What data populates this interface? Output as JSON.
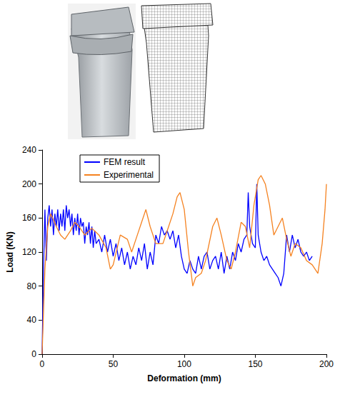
{
  "chart_data": {
    "type": "line",
    "xlabel": "Deformation (mm)",
    "ylabel": "Load (KN)",
    "xlim": [
      0,
      200
    ],
    "xticks": [
      0,
      50,
      100,
      150,
      200
    ],
    "ylim": [
      0,
      240
    ],
    "yticks": [
      0,
      40,
      80,
      120,
      160,
      200,
      240
    ],
    "grid": false,
    "legend": "upper left",
    "series": [
      {
        "name": "FEM result",
        "color": "#0000ff",
        "x": [
          0,
          1,
          2,
          3,
          4,
          5,
          6,
          7,
          8,
          9,
          10,
          11,
          12,
          13,
          14,
          15,
          16,
          17,
          18,
          19,
          20,
          21,
          22,
          23,
          24,
          25,
          26,
          27,
          28,
          29,
          30,
          31,
          32,
          33,
          34,
          35,
          36,
          37,
          38,
          40,
          42,
          44,
          46,
          48,
          50,
          52,
          54,
          56,
          58,
          60,
          62,
          64,
          66,
          68,
          70,
          72,
          74,
          76,
          78,
          80,
          82,
          84,
          86,
          88,
          90,
          92,
          94,
          96,
          98,
          100,
          102,
          104,
          106,
          108,
          110,
          112,
          114,
          116,
          118,
          120,
          122,
          124,
          126,
          128,
          130,
          132,
          134,
          136,
          138,
          140,
          142,
          144,
          145,
          146,
          148,
          150,
          151,
          152,
          154,
          156,
          158,
          160,
          162,
          164,
          166,
          168,
          170,
          172,
          174,
          176,
          178,
          180,
          182,
          184,
          186,
          188,
          190
        ],
        "values": [
          0,
          100,
          170,
          110,
          160,
          175,
          150,
          170,
          140,
          165,
          150,
          170,
          145,
          165,
          150,
          170,
          145,
          175,
          160,
          170,
          150,
          165,
          140,
          160,
          145,
          165,
          140,
          160,
          150,
          155,
          130,
          150,
          140,
          155,
          130,
          150,
          125,
          145,
          130,
          135,
          120,
          140,
          120,
          135,
          115,
          130,
          110,
          125,
          105,
          120,
          100,
          115,
          105,
          125,
          110,
          130,
          100,
          120,
          105,
          140,
          130,
          150,
          140,
          145,
          135,
          145,
          125,
          140,
          115,
          100,
          95,
          110,
          100,
          95,
          115,
          100,
          115,
          120,
          100,
          110,
          115,
          100,
          120,
          95,
          115,
          100,
          120,
          110,
          130,
          120,
          135,
          140,
          190,
          150,
          130,
          125,
          200,
          140,
          120,
          110,
          115,
          105,
          100,
          95,
          90,
          80,
          95,
          140,
          120,
          140,
          125,
          135,
          120,
          115,
          120,
          110,
          115
        ]
      },
      {
        "name": "Experimental",
        "color": "#f58220",
        "x": [
          0,
          2,
          4,
          6,
          8,
          10,
          13,
          16,
          20,
          23,
          26,
          30,
          35,
          40,
          45,
          48,
          50,
          55,
          60,
          63,
          67,
          70,
          73,
          76,
          80,
          85,
          88,
          92,
          95,
          97,
          100,
          103,
          106,
          108,
          112,
          115,
          120,
          123,
          126,
          130,
          133,
          136,
          140,
          143,
          146,
          149,
          152,
          154,
          157,
          160,
          163,
          166,
          169,
          172,
          175,
          178,
          182,
          186,
          190,
          194,
          197,
          199,
          200
        ],
        "values": [
          0,
          100,
          150,
          165,
          158,
          150,
          140,
          135,
          145,
          155,
          150,
          140,
          148,
          140,
          125,
          100,
          105,
          140,
          135,
          120,
          140,
          155,
          170,
          150,
          130,
          130,
          145,
          165,
          185,
          190,
          170,
          120,
          80,
          90,
          95,
          110,
          150,
          160,
          140,
          110,
          100,
          120,
          155,
          150,
          125,
          175,
          205,
          210,
          200,
          175,
          140,
          150,
          160,
          135,
          115,
          130,
          125,
          110,
          105,
          95,
          130,
          170,
          200
        ]
      }
    ]
  }
}
